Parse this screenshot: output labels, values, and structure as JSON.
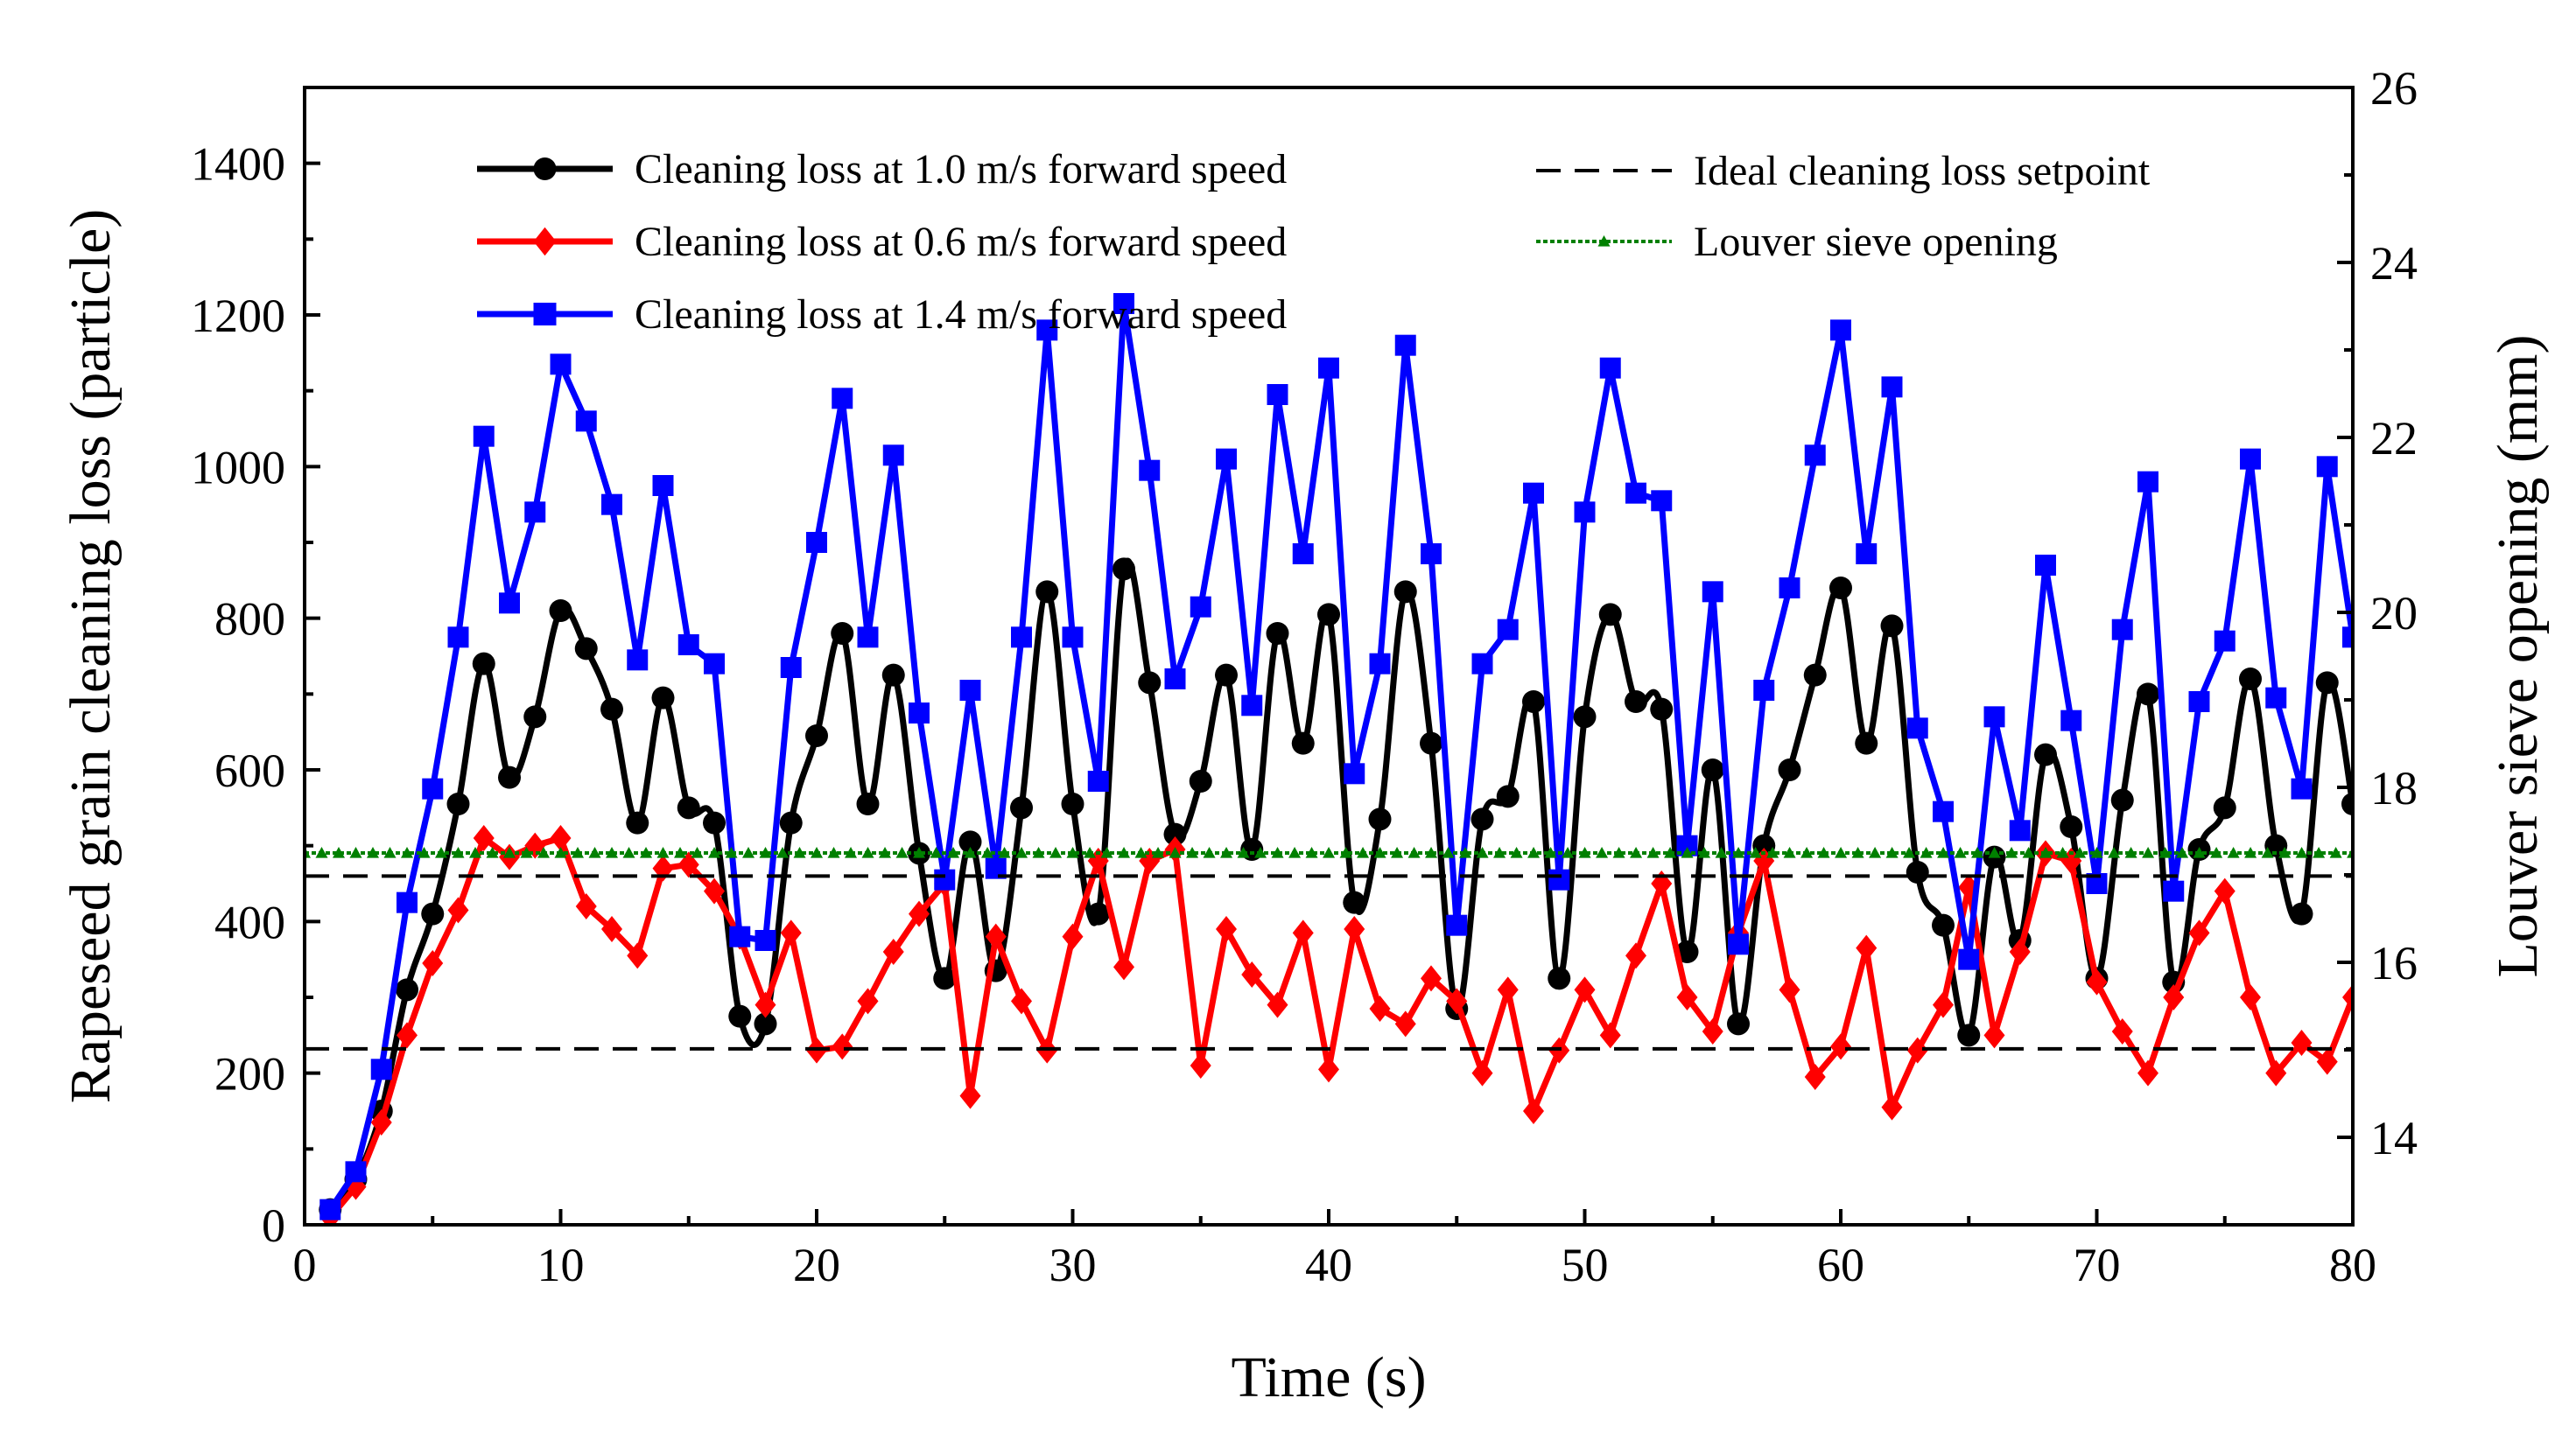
{
  "chart_data": {
    "type": "line",
    "title": "",
    "xlabel": "Time (s)",
    "ylabel": "Rapeseed grain cleaning loss (particle)",
    "y2label": "Louver sieve opening (mm)",
    "xlim": [
      0,
      80
    ],
    "ylim": [
      0,
      1500
    ],
    "y2lim": [
      13,
      26
    ],
    "xticks": [
      "0",
      "10",
      "20",
      "30",
      "40",
      "50",
      "60",
      "70",
      "80"
    ],
    "yticks": [
      "0",
      "200",
      "400",
      "600",
      "800",
      "1000",
      "1200",
      "1400"
    ],
    "y2ticks": [
      "14",
      "16",
      "18",
      "20",
      "22",
      "24",
      "26"
    ],
    "grid": false,
    "x": [
      1,
      2,
      3,
      4,
      5,
      6,
      7,
      8,
      9,
      10,
      11,
      12,
      13,
      14,
      15,
      16,
      17,
      18,
      19,
      20,
      21,
      22,
      23,
      24,
      25,
      26,
      27,
      28,
      29,
      30,
      31,
      32,
      33,
      34,
      35,
      36,
      37,
      38,
      39,
      40,
      41,
      42,
      43,
      44,
      45,
      46,
      47,
      48,
      49,
      50,
      51,
      52,
      53,
      54,
      55,
      56,
      57,
      58,
      59,
      60,
      61,
      62,
      63,
      64,
      65,
      66,
      67,
      68,
      69,
      70,
      71,
      72,
      73,
      74,
      75,
      76,
      77,
      78,
      79,
      80
    ],
    "series": [
      {
        "name": "Cleaning loss at 1.0 m/s forward speed",
        "color": "#000000",
        "marker": "circle",
        "smooth": true,
        "values": [
          20,
          60,
          150,
          310,
          410,
          555,
          740,
          590,
          670,
          810,
          760,
          680,
          530,
          695,
          550,
          530,
          275,
          265,
          530,
          645,
          780,
          555,
          725,
          490,
          325,
          505,
          335,
          550,
          835,
          555,
          410,
          865,
          715,
          515,
          585,
          725,
          495,
          780,
          635,
          805,
          425,
          535,
          835,
          635,
          285,
          535,
          565,
          690,
          325,
          670,
          805,
          690,
          680,
          360,
          600,
          265,
          500,
          600,
          725,
          840,
          635,
          790,
          465,
          395,
          250,
          485,
          375,
          620,
          525,
          325,
          560,
          700,
          320,
          495,
          550,
          720,
          500,
          410,
          715,
          555
        ]
      },
      {
        "name": "Cleaning loss at 0.6 m/s forward speed",
        "color": "#ff0000",
        "marker": "diamond",
        "smooth": false,
        "values": [
          10,
          50,
          135,
          250,
          345,
          415,
          510,
          485,
          500,
          510,
          420,
          390,
          355,
          470,
          475,
          440,
          380,
          290,
          385,
          230,
          235,
          295,
          360,
          410,
          450,
          170,
          380,
          295,
          230,
          380,
          480,
          340,
          480,
          495,
          210,
          390,
          330,
          290,
          385,
          205,
          390,
          285,
          265,
          325,
          295,
          200,
          310,
          150,
          230,
          310,
          250,
          355,
          450,
          300,
          255,
          385,
          480,
          310,
          195,
          235,
          365,
          155,
          230,
          290,
          445,
          250,
          360,
          490,
          480,
          320,
          255,
          200,
          300,
          385,
          440,
          300,
          200,
          240,
          215,
          300
        ]
      },
      {
        "name": "Cleaning loss at 1.4 m/s forward speed",
        "color": "#0000ff",
        "marker": "square",
        "smooth": false,
        "values": [
          20,
          70,
          205,
          425,
          575,
          775,
          1040,
          820,
          940,
          1135,
          1060,
          950,
          745,
          975,
          765,
          740,
          380,
          375,
          735,
          900,
          1090,
          775,
          1015,
          675,
          455,
          705,
          470,
          775,
          1180,
          775,
          585,
          1215,
          995,
          720,
          815,
          1010,
          685,
          1095,
          885,
          1130,
          595,
          740,
          1160,
          885,
          395,
          740,
          785,
          965,
          455,
          940,
          1130,
          965,
          955,
          500,
          835,
          370,
          705,
          840,
          1015,
          1180,
          885,
          1105,
          655,
          545,
          350,
          670,
          520,
          870,
          665,
          450,
          785,
          980,
          440,
          690,
          770,
          1010,
          695,
          575,
          1000,
          775
        ]
      },
      {
        "name": "Ideal cleaning loss setpoint",
        "color": "#000000",
        "style": "dashed",
        "levels": [
          460,
          232
        ]
      },
      {
        "name": "Louver sieve opening",
        "color": "#008000",
        "marker": "triangle",
        "axis": "right",
        "value": 17.25
      }
    ],
    "legend_position": "top"
  }
}
